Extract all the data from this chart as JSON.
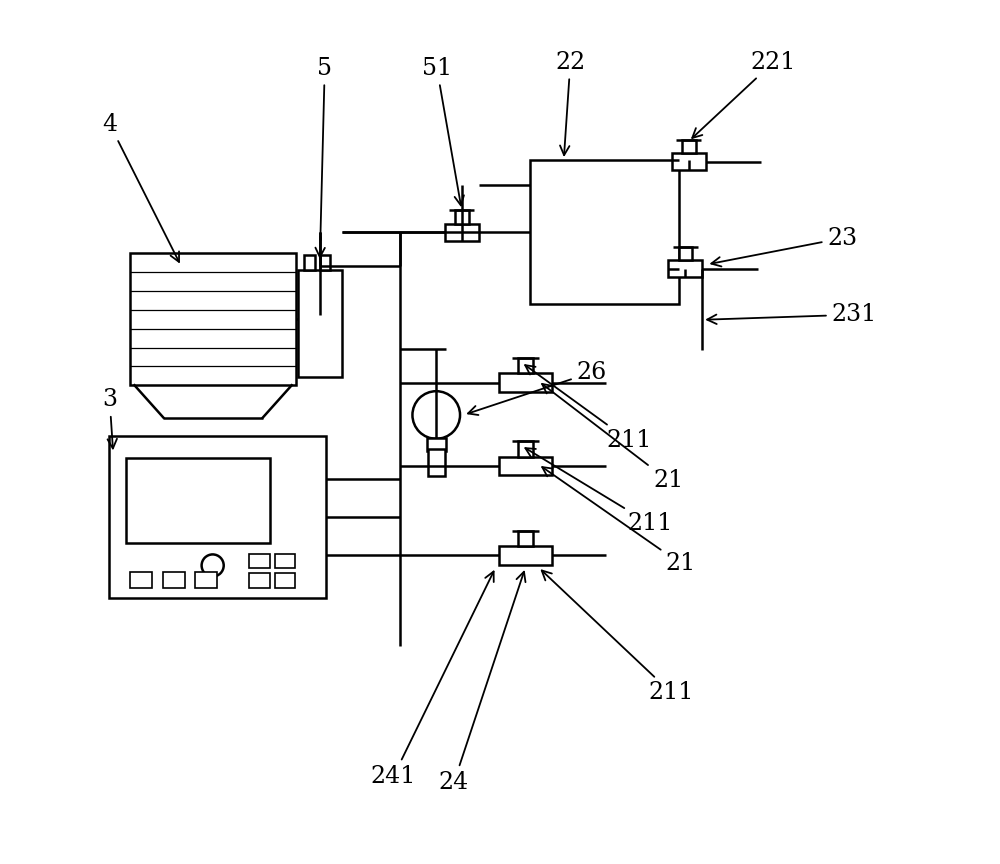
{
  "bg_color": "#ffffff",
  "line_color": "#000000",
  "line_width": 1.8,
  "fig_width": 10.0,
  "fig_height": 8.64
}
